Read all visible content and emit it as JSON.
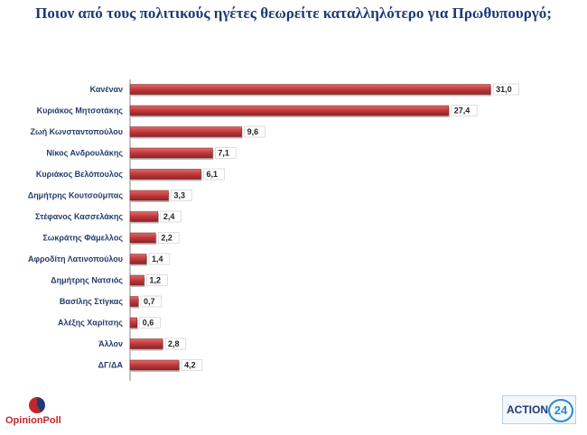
{
  "chart_data": {
    "type": "bar",
    "orientation": "horizontal",
    "title": "Ποιον από τους πολιτικούς ηγέτες θεωρείτε καταλληλότερο για Πρωθυπουργό;",
    "categories": [
      "Κανέναν",
      "Κυριάκος Μητσοτάκης",
      "Ζωή Κωνσταντοπούλου",
      "Νίκος Ανδρουλάκης",
      "Κυριάκος Βελόπουλος",
      "Δημήτρης Κουτσούμπας",
      "Στέφανος Κασσελάκης",
      "Σωκράτης Φάμελλος",
      "Αφροδίτη Λατινοπούλου",
      "Δημήτρης Νατσιός",
      "Βασίλης Στίγκας",
      "Αλέξης Χαρίτσης",
      "Άλλον",
      "ΔΓ/ΔΑ"
    ],
    "values": [
      31.0,
      27.4,
      9.6,
      7.1,
      6.1,
      3.3,
      2.4,
      2.2,
      1.4,
      1.2,
      0.7,
      0.6,
      2.8,
      4.2
    ],
    "value_labels": [
      "31,0",
      "27,4",
      "9,6",
      "7,1",
      "6,1",
      "3,3",
      "2,4",
      "2,2",
      "1,4",
      "1,2",
      "0,7",
      "0,6",
      "2,8",
      "4,2"
    ],
    "xlim": [
      0,
      32
    ],
    "bar_color": "#c0393b",
    "grid": false
  },
  "logos": {
    "left": "OpinionPoll",
    "right_text": "ACTION",
    "right_number": "24"
  }
}
